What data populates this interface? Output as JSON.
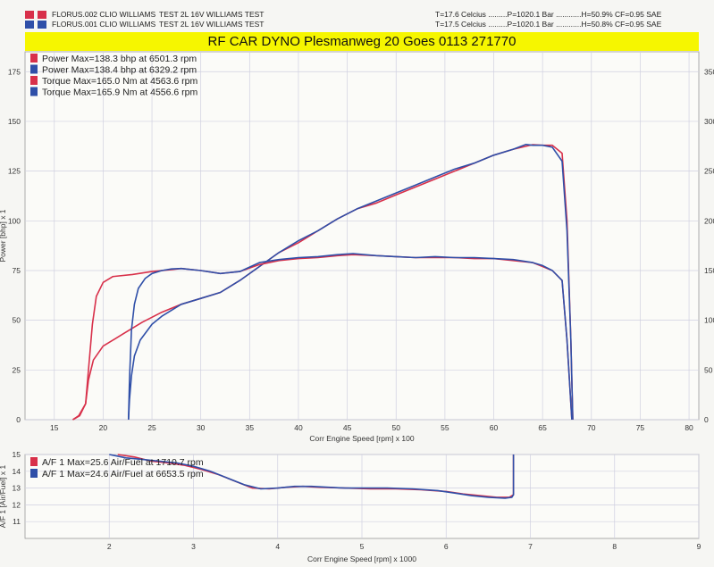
{
  "header": {
    "runs": [
      {
        "file": "FLORUS.002 CLIO WILLIAMS",
        "test": "TEST 2L 16V WILLIAMS TEST",
        "conditions": "T=17.6 Celcius .........P=1020.1 Bar ............H=50.9% CF=0.95 SAE",
        "color": "#d8304a"
      },
      {
        "file": "FLORUS.001 CLIO WILLIAMS",
        "test": "TEST 2L 16V WILLIAMS TEST",
        "conditions": "T=17.5 Celcius .........P=1020.1 Bar ............H=50.8% CF=0.95 SAE",
        "color": "#2f4fa8"
      }
    ],
    "banner": "RF CAR DYNO  Plesmanweg 20 Goes  0113 271770"
  },
  "chart_data": [
    {
      "type": "line",
      "xlabel": "Corr Engine Speed [rpm] x 100",
      "ylabel": "Power [bhp] x 1",
      "xlim": [
        12,
        81
      ],
      "ylim": [
        0,
        185
      ],
      "x_ticks": [
        15,
        20,
        25,
        30,
        35,
        40,
        45,
        50,
        55,
        60,
        65,
        70,
        75,
        80
      ],
      "y_ticks": [
        0,
        25,
        50,
        75,
        100,
        125,
        150,
        175
      ],
      "right_ticks": [
        "0",
        "50",
        "100",
        "150",
        "200",
        "250",
        "300",
        "350"
      ],
      "grid": true,
      "legend_position": "top-left",
      "legend": [
        {
          "label": "Power  Max=138.3 bhp at 6501.3 rpm",
          "color": "#d8304a"
        },
        {
          "label": "Power  Max=138.4 bhp at 6329.2 rpm",
          "color": "#2f4fa8"
        },
        {
          "label": "Torque  Max=165.0 Nm at 4563.6 rpm",
          "color": "#d8304a"
        },
        {
          "label": "Torque  Max=165.9 Nm at 4556.6 rpm",
          "color": "#2f4fa8"
        }
      ],
      "series": [
        {
          "color": "#d8304a",
          "x": [
            16.9,
            17.6,
            18.2,
            18.5,
            19,
            20,
            22,
            24,
            26,
            28,
            30,
            32,
            34,
            36,
            38,
            40,
            42,
            44,
            46,
            48,
            50,
            52,
            54,
            56,
            58,
            60,
            62,
            64,
            65,
            66,
            67,
            67.5,
            67.9,
            68.1
          ],
          "y": [
            0,
            2,
            8,
            20,
            30,
            37,
            43,
            49,
            54,
            58,
            61,
            64,
            70,
            77,
            84,
            89,
            95,
            101,
            106,
            109,
            113,
            117,
            121,
            125,
            129,
            133,
            136,
            138.3,
            138,
            138,
            134,
            100,
            40,
            0
          ]
        },
        {
          "color": "#2f4fa8",
          "x": [
            22.6,
            22.7,
            22.9,
            23.2,
            23.8,
            25,
            26,
            28,
            30,
            32,
            34,
            36,
            38,
            40,
            42,
            44,
            46,
            48,
            50,
            52,
            54,
            56,
            58,
            60,
            62,
            63.3,
            64,
            65,
            66,
            67,
            67.5,
            67.9,
            68.1
          ],
          "y": [
            0,
            10,
            22,
            32,
            40,
            48,
            52,
            58,
            61,
            64,
            70,
            77,
            84,
            90,
            95,
            101,
            106,
            110,
            114,
            118,
            122,
            126,
            129,
            133,
            136,
            138.4,
            138,
            138,
            137,
            130,
            95,
            40,
            0
          ]
        },
        {
          "color": "#d8304a",
          "x": [
            16.9,
            17.5,
            18.2,
            18.5,
            18.9,
            19.3,
            20,
            21,
            23,
            25,
            27,
            28,
            30,
            32,
            34,
            36,
            38,
            40,
            42,
            44,
            45.6,
            48,
            50,
            52,
            54,
            56,
            58,
            60,
            62,
            64,
            65,
            66,
            67,
            67.5,
            68
          ],
          "y": [
            0,
            2,
            8,
            25,
            48,
            62,
            69,
            72,
            73,
            74.5,
            75.5,
            76,
            75,
            73.5,
            74.5,
            78,
            80,
            81,
            81.5,
            82.5,
            83,
            82.5,
            82,
            81.5,
            81.5,
            81.5,
            81,
            81,
            80,
            79,
            77,
            75,
            70,
            40,
            0
          ]
        },
        {
          "color": "#2f4fa8",
          "x": [
            22.6,
            22.7,
            22.9,
            23.2,
            23.6,
            24.3,
            25,
            26,
            27,
            28,
            30,
            32,
            34,
            36,
            38,
            40,
            42,
            44,
            45.6,
            48,
            50,
            52,
            54,
            56,
            58,
            60,
            62,
            64,
            65,
            66,
            67,
            67.5,
            68
          ],
          "y": [
            0,
            20,
            45,
            58,
            66,
            71,
            73.5,
            75,
            75.8,
            76,
            75,
            73.5,
            74.5,
            79,
            80.5,
            81.5,
            82,
            83,
            83.5,
            82.5,
            82,
            81.5,
            82,
            81.5,
            81.5,
            81,
            80.5,
            79,
            77.5,
            75,
            70,
            40,
            0
          ]
        }
      ]
    },
    {
      "type": "line",
      "xlabel": "Corr Engine Speed [rpm] x 1000",
      "ylabel": "A/F 1 [Air/Fuel] x 1",
      "xlim": [
        1,
        9
      ],
      "ylim": [
        10,
        15
      ],
      "x_ticks": [
        2,
        3,
        4,
        5,
        6,
        7,
        8,
        9
      ],
      "y_ticks": [
        11,
        12,
        13,
        14,
        15
      ],
      "grid": true,
      "legend_position": "top-left",
      "legend": [
        {
          "label": "A/F 1  Max=25.6 Air/Fuel at 1710.7 rpm",
          "color": "#d8304a"
        },
        {
          "label": "A/F 1  Max=24.6 Air/Fuel at 6653.5 rpm",
          "color": "#2f4fa8"
        }
      ],
      "series": [
        {
          "color": "#d8304a",
          "x": [
            2.1,
            2.3,
            2.5,
            2.7,
            2.9,
            3.1,
            3.3,
            3.5,
            3.7,
            3.9,
            4.1,
            4.3,
            4.5,
            4.8,
            5.1,
            5.4,
            5.7,
            6,
            6.2,
            6.4,
            6.6,
            6.75,
            6.8,
            6.8,
            6.8
          ],
          "y": [
            15,
            14.85,
            14.6,
            14.5,
            14.35,
            14.1,
            13.8,
            13.4,
            13.0,
            12.95,
            13.05,
            13.1,
            13.05,
            13.0,
            12.95,
            12.95,
            12.9,
            12.8,
            12.65,
            12.55,
            12.45,
            12.45,
            12.6,
            14,
            15
          ]
        },
        {
          "color": "#2f4fa8",
          "x": [
            2.0,
            2.2,
            2.4,
            2.6,
            2.8,
            3.0,
            3.2,
            3.4,
            3.6,
            3.8,
            4.0,
            4.2,
            4.4,
            4.6,
            4.8,
            5.0,
            5.3,
            5.6,
            5.9,
            6.1,
            6.3,
            6.5,
            6.7,
            6.78,
            6.8,
            6.8,
            6.8
          ],
          "y": [
            15,
            14.8,
            14.7,
            14.6,
            14.5,
            14.3,
            14.0,
            13.6,
            13.2,
            12.95,
            13.0,
            13.1,
            13.1,
            13.05,
            13.0,
            13.0,
            13.0,
            12.95,
            12.85,
            12.7,
            12.55,
            12.45,
            12.4,
            12.45,
            12.6,
            14,
            15
          ]
        }
      ]
    }
  ]
}
